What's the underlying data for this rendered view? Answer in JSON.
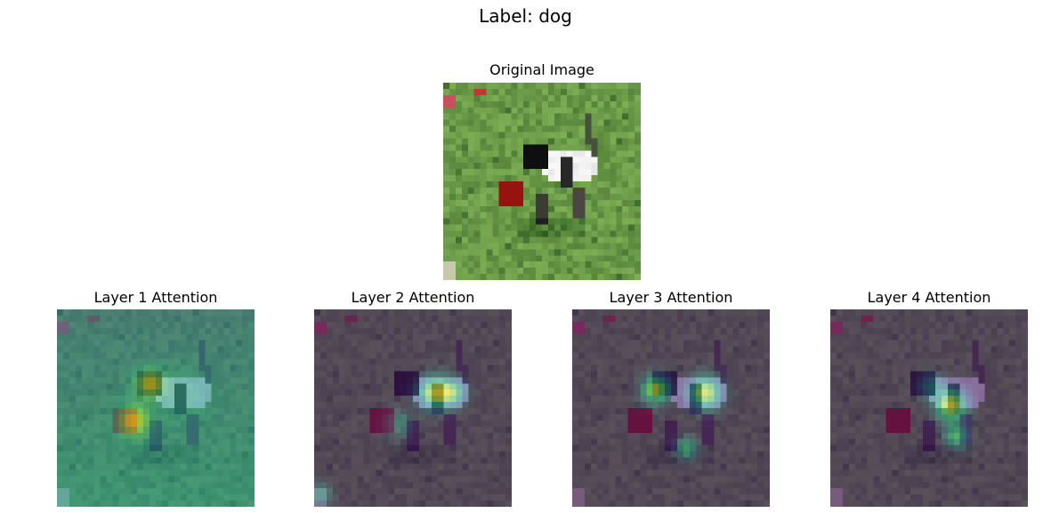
{
  "figure": {
    "suptitle": "Label: dog"
  },
  "panels": {
    "original": {
      "title": "Original Image"
    },
    "layer1": {
      "title": "Layer 1 Attention"
    },
    "layer2": {
      "title": "Layer 2 Attention"
    },
    "layer3": {
      "title": "Layer 3 Attention"
    },
    "layer4": {
      "title": "Layer 4 Attention"
    }
  }
}
